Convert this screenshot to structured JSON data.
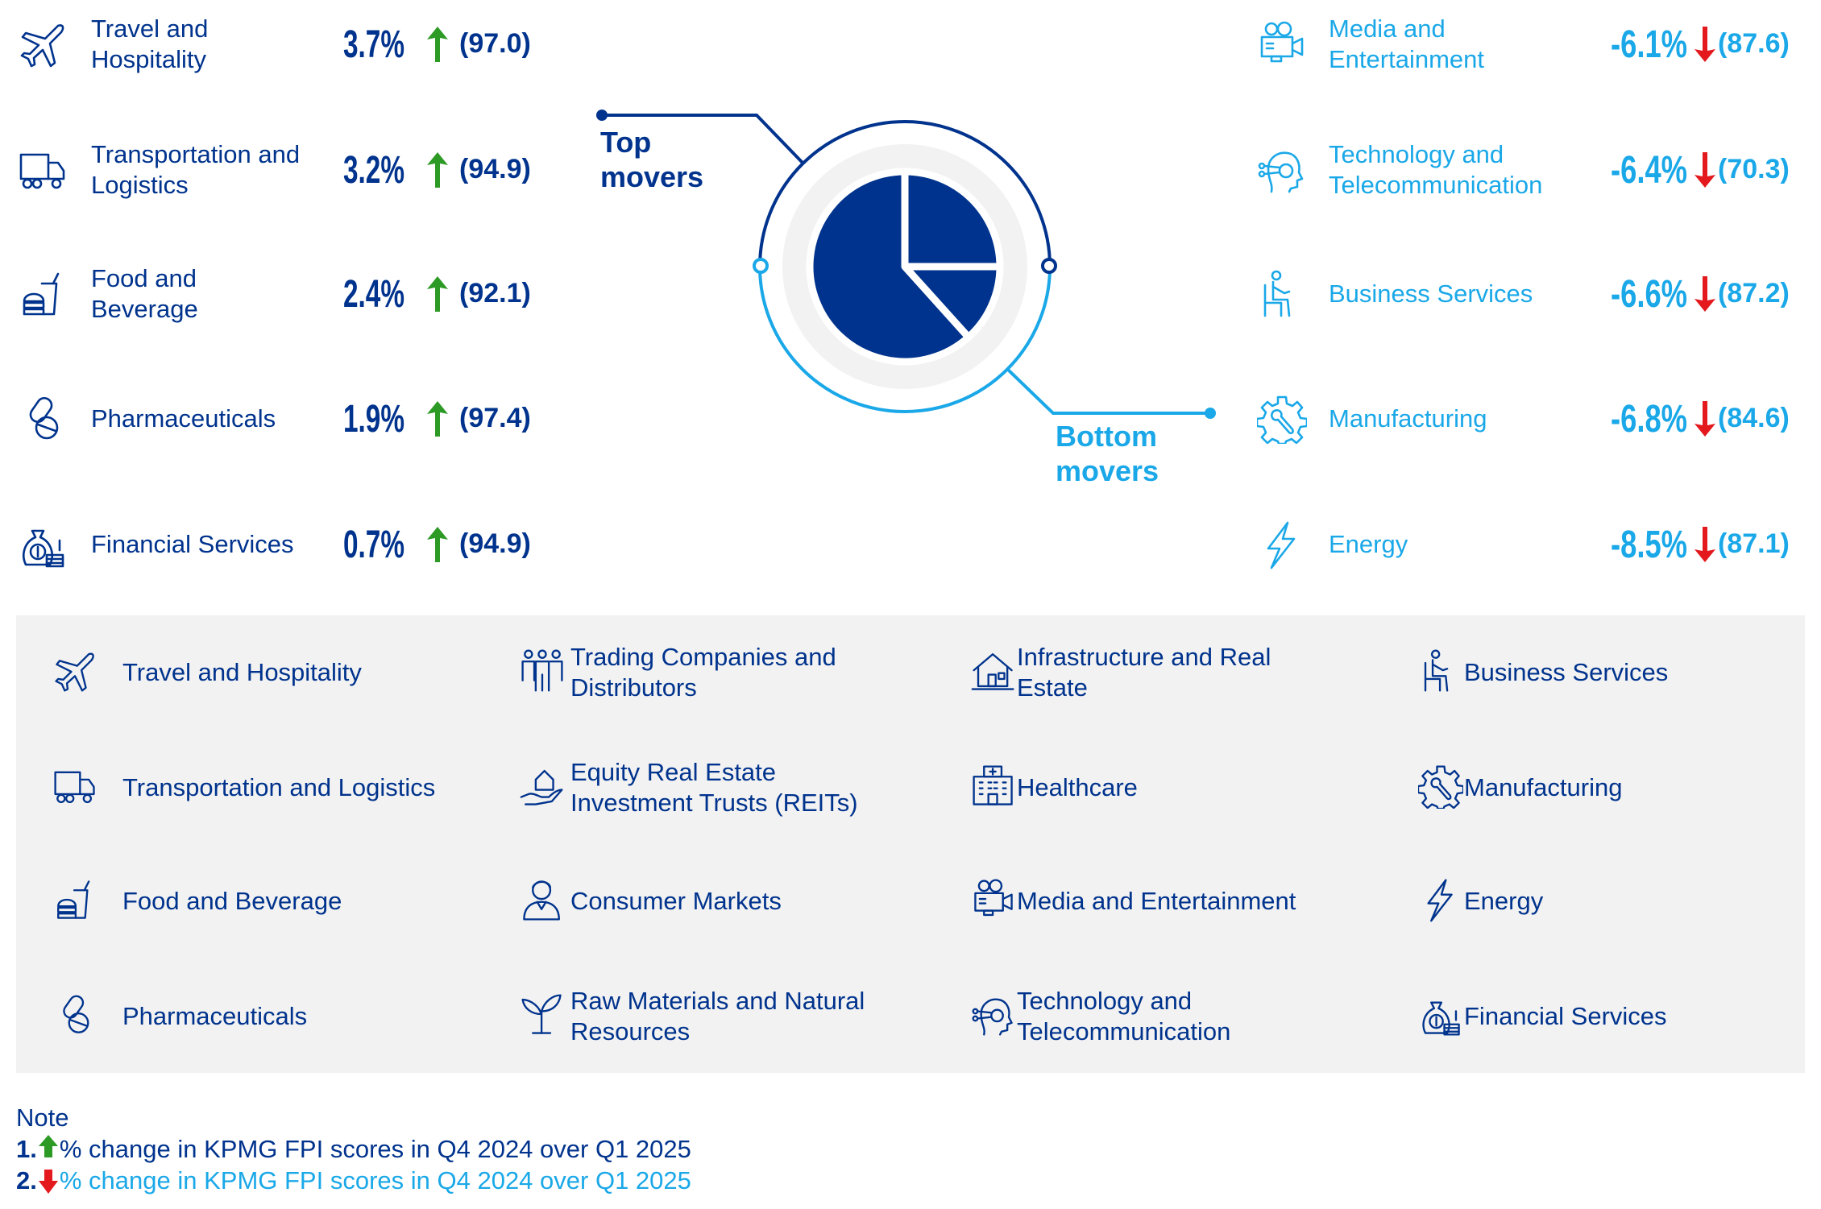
{
  "colors": {
    "navy": "#00338D",
    "cyan": "#1AA8E8",
    "green": "#2E9A26",
    "red": "#E3191E",
    "panel": "#F2F2F2"
  },
  "center": {
    "top_label_1": "Top",
    "top_label_2": "movers",
    "bottom_label_1": "Bottom",
    "bottom_label_2": "movers"
  },
  "top_movers": [
    {
      "icon": "airplane-icon",
      "label_1": "Travel and",
      "label_2": "Hospitality",
      "change": "3.7%",
      "score": "(97.0)"
    },
    {
      "icon": "truck-icon",
      "label_1": "Transportation and",
      "label_2": "Logistics",
      "change": "3.2%",
      "score": "(94.9)"
    },
    {
      "icon": "burger-drink-icon",
      "label_1": "Food and",
      "label_2": "Beverage",
      "change": "2.4%",
      "score": "(92.1)"
    },
    {
      "icon": "pills-icon",
      "label_1": "Pharmaceuticals",
      "label_2": "",
      "change": "1.9%",
      "score": "(97.4)"
    },
    {
      "icon": "money-bag-icon",
      "label_1": "Financial Services",
      "label_2": "",
      "change": "0.7%",
      "score": "(94.9)"
    }
  ],
  "bottom_movers": [
    {
      "icon": "video-camera-icon",
      "label_1": "Media and",
      "label_2": "Entertainment",
      "change": "-6.1%",
      "score": "(87.6)"
    },
    {
      "icon": "tech-head-icon",
      "label_1": "Technology and",
      "label_2": "Telecommunication",
      "change": "-6.4%",
      "score": "(70.3)"
    },
    {
      "icon": "seated-person-icon",
      "label_1": "Business Services",
      "label_2": "",
      "change": "-6.6%",
      "score": "(87.2)"
    },
    {
      "icon": "gear-wrench-icon",
      "label_1": "Manufacturing",
      "label_2": "",
      "change": "-6.8%",
      "score": "(84.6)"
    },
    {
      "icon": "lightning-icon",
      "label_1": "Energy",
      "label_2": "",
      "change": "-8.5%",
      "score": "(87.1)"
    }
  ],
  "legend": [
    {
      "icon": "airplane-icon",
      "label_1": "Travel and Hospitality",
      "label_2": ""
    },
    {
      "icon": "people-group-icon",
      "label_1": "Trading Companies and",
      "label_2": "Distributors"
    },
    {
      "icon": "house-icon",
      "label_1": "Infrastructure and Real",
      "label_2": "Estate"
    },
    {
      "icon": "seated-person-icon",
      "label_1": "Business Services",
      "label_2": ""
    },
    {
      "icon": "truck-icon",
      "label_1": "Transportation and Logistics",
      "label_2": ""
    },
    {
      "icon": "hand-house-icon",
      "label_1": "Equity Real Estate",
      "label_2": "Investment Trusts (REITs)"
    },
    {
      "icon": "hospital-icon",
      "label_1": "Healthcare",
      "label_2": ""
    },
    {
      "icon": "gear-wrench-icon",
      "label_1": "Manufacturing",
      "label_2": ""
    },
    {
      "icon": "burger-drink-icon",
      "label_1": "Food and Beverage",
      "label_2": ""
    },
    {
      "icon": "person-icon",
      "label_1": "Consumer Markets",
      "label_2": ""
    },
    {
      "icon": "video-camera-icon",
      "label_1": "Media and Entertainment",
      "label_2": ""
    },
    {
      "icon": "lightning-icon",
      "label_1": "Energy",
      "label_2": ""
    },
    {
      "icon": "pills-icon",
      "label_1": "Pharmaceuticals",
      "label_2": ""
    },
    {
      "icon": "plant-icon",
      "label_1": "Raw Materials and Natural",
      "label_2": "Resources"
    },
    {
      "icon": "tech-head-icon",
      "label_1": "Technology and",
      "label_2": "Telecommunication"
    },
    {
      "icon": "money-bag-icon",
      "label_1": "Financial Services",
      "label_2": ""
    }
  ],
  "note": {
    "title": "Note",
    "n1": "1.",
    "n2": "2.",
    "text_1": "% change in KPMG FPI scores in Q4 2024 over Q1 2025",
    "text_2": "% change in KPMG FPI scores in Q4 2024 over Q1 2025"
  }
}
